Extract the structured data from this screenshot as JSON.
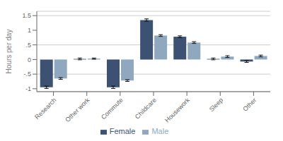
{
  "chart_data": {
    "type": "bar",
    "categories": [
      "Research",
      "Other work",
      "Commute",
      "Childcare",
      "Housework",
      "Sleep",
      "Other"
    ],
    "series": [
      {
        "name": "Female",
        "color": "#3d5272",
        "values": [
          -0.95,
          0.02,
          -0.95,
          1.35,
          0.78,
          0.02,
          -0.07
        ],
        "errors": [
          0.04,
          0.03,
          0.04,
          0.04,
          0.03,
          0.03,
          0.03
        ]
      },
      {
        "name": "Male",
        "color": "#8fa8c0",
        "values": [
          -0.65,
          0.03,
          -0.72,
          0.82,
          0.58,
          0.1,
          0.12
        ],
        "errors": [
          0.03,
          0.02,
          0.03,
          0.03,
          0.03,
          0.03,
          0.03
        ]
      }
    ],
    "ylabel": "Hours per day",
    "ylim": [
      -1.1,
      1.65
    ],
    "yticks": [
      {
        "value": -1,
        "label": "-1"
      },
      {
        "value": -0.5,
        "label": "-.5"
      },
      0,
      {
        "value": 0.5,
        "label": ".5"
      },
      1,
      1.5
    ],
    "grid": true,
    "legend": "bottom"
  }
}
